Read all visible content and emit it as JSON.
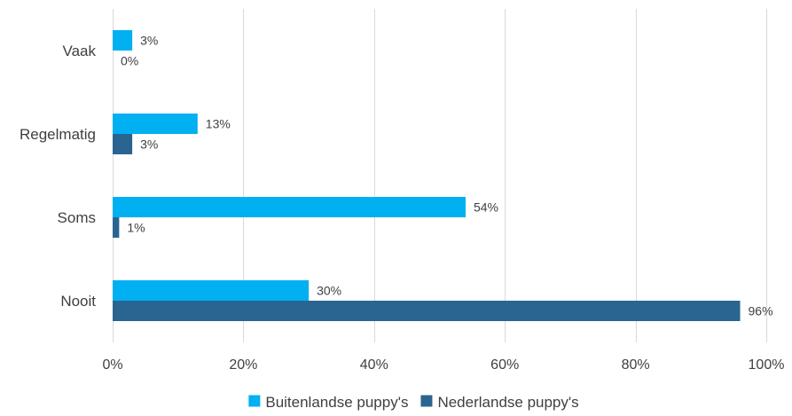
{
  "chart_data": {
    "type": "bar",
    "orientation": "horizontal",
    "categories": [
      "Vaak",
      "Regelmatig",
      "Soms",
      "Nooit"
    ],
    "series": [
      {
        "name": "Buitenlandse puppy's",
        "color": "#00b0f0",
        "values": [
          3,
          13,
          54,
          30
        ],
        "labels": [
          "3%",
          "13%",
          "54%",
          "30%"
        ]
      },
      {
        "name": "Nederlandse puppy's",
        "color": "#2a6591",
        "values": [
          0,
          3,
          1,
          96
        ],
        "labels": [
          "0%",
          "3%",
          "1%",
          "96%"
        ]
      }
    ],
    "xlim": [
      0,
      100
    ],
    "xticks": [
      0,
      20,
      40,
      60,
      80,
      100
    ],
    "xtick_labels": [
      "0%",
      "20%",
      "40%",
      "60%",
      "80%",
      "100%"
    ],
    "grid": "vertical",
    "legend": "bottom",
    "title": "",
    "xlabel": "",
    "ylabel": ""
  }
}
